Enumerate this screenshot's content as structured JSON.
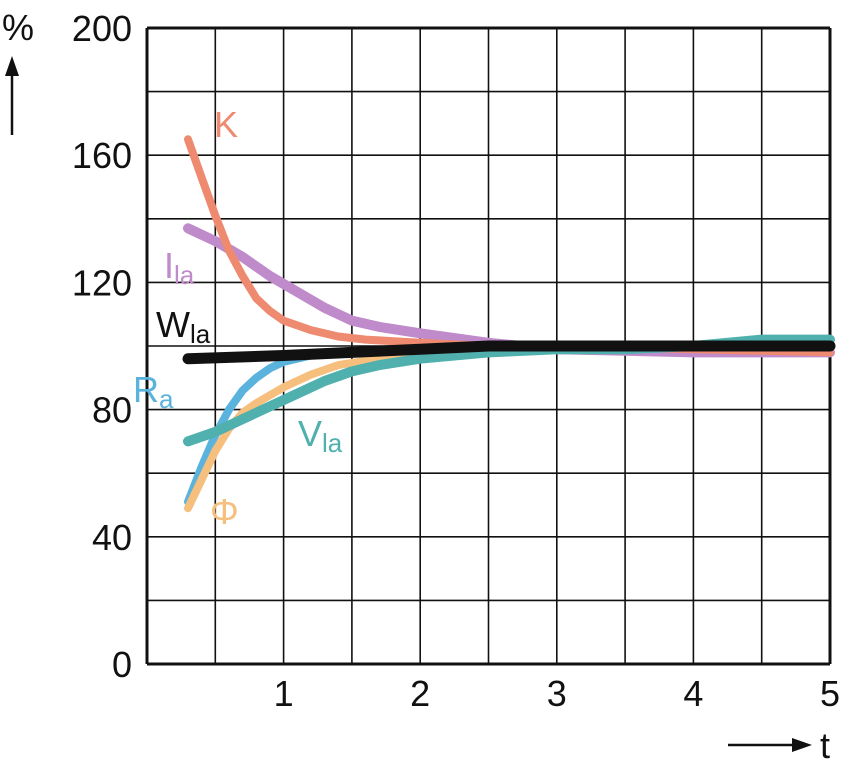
{
  "chart_data": {
    "type": "line",
    "xlabel": "t",
    "ylabel": "%",
    "xlim": [
      0,
      5
    ],
    "ylim": [
      0,
      200
    ],
    "x_ticks": [
      "1",
      "2",
      "3",
      "4",
      "5"
    ],
    "y_ticks": [
      "0",
      "40",
      "80",
      "120",
      "160",
      "200"
    ],
    "grid": true,
    "series": [
      {
        "name": "K",
        "label_main": "K",
        "label_sub": "",
        "color": "#ee8a70",
        "points": [
          [
            0.3,
            165
          ],
          [
            0.4,
            153
          ],
          [
            0.5,
            141
          ],
          [
            0.6,
            130
          ],
          [
            0.7,
            122
          ],
          [
            0.8,
            115
          ],
          [
            0.9,
            111
          ],
          [
            1.0,
            108
          ],
          [
            1.2,
            105
          ],
          [
            1.4,
            103
          ],
          [
            1.6,
            102
          ],
          [
            2.0,
            101
          ],
          [
            2.5,
            100
          ],
          [
            3,
            100
          ],
          [
            4,
            99
          ],
          [
            5,
            98
          ]
        ]
      },
      {
        "name": "Ila",
        "label_main": "I",
        "label_sub": "la",
        "color": "#c08bca",
        "points": [
          [
            0.3,
            137
          ],
          [
            0.5,
            133
          ],
          [
            0.7,
            128
          ],
          [
            0.9,
            122
          ],
          [
            1.1,
            117
          ],
          [
            1.3,
            112
          ],
          [
            1.5,
            108
          ],
          [
            1.7,
            106
          ],
          [
            2.0,
            104
          ],
          [
            2.5,
            101
          ],
          [
            3,
            99
          ],
          [
            4,
            98
          ],
          [
            5,
            98
          ]
        ]
      },
      {
        "name": "Ra",
        "label_main": "R",
        "label_sub": "a",
        "color": "#5ab3dd",
        "points": [
          [
            0.3,
            51
          ],
          [
            0.4,
            62
          ],
          [
            0.5,
            72
          ],
          [
            0.6,
            80
          ],
          [
            0.7,
            86
          ],
          [
            0.8,
            90
          ],
          [
            0.9,
            93
          ],
          [
            1.0,
            95
          ],
          [
            1.2,
            97
          ],
          [
            1.5,
            98
          ],
          [
            2.0,
            99
          ],
          [
            3,
            100
          ],
          [
            4,
            100
          ],
          [
            5,
            100
          ]
        ]
      },
      {
        "name": "Φ",
        "label_main": "Φ",
        "label_sub": "",
        "color": "#f6bf7e",
        "points": [
          [
            0.3,
            49
          ],
          [
            0.4,
            58
          ],
          [
            0.5,
            67
          ],
          [
            0.6,
            74
          ],
          [
            0.7,
            79
          ],
          [
            0.8,
            82
          ],
          [
            1.0,
            87
          ],
          [
            1.2,
            91
          ],
          [
            1.4,
            94
          ],
          [
            1.7,
            96
          ],
          [
            2.0,
            98
          ],
          [
            2.5,
            99
          ],
          [
            3,
            100
          ],
          [
            4,
            100
          ],
          [
            5,
            100
          ]
        ]
      },
      {
        "name": "Vla",
        "label_main": "V",
        "label_sub": "la",
        "color": "#4fb0ad",
        "points": [
          [
            0.3,
            70
          ],
          [
            0.5,
            73
          ],
          [
            0.7,
            77
          ],
          [
            0.9,
            81
          ],
          [
            1.1,
            85
          ],
          [
            1.3,
            89
          ],
          [
            1.5,
            92
          ],
          [
            1.7,
            94
          ],
          [
            2.0,
            96
          ],
          [
            2.5,
            98
          ],
          [
            3,
            99
          ],
          [
            3.5,
            99
          ],
          [
            4,
            100
          ],
          [
            4.5,
            102
          ],
          [
            5,
            102
          ]
        ]
      },
      {
        "name": "Wla",
        "label_main": "W",
        "label_sub": "la",
        "color": "#111111",
        "points": [
          [
            0.3,
            96
          ],
          [
            1.0,
            97
          ],
          [
            1.5,
            98
          ],
          [
            2.0,
            99
          ],
          [
            2.5,
            100
          ],
          [
            3,
            100
          ],
          [
            4,
            100
          ],
          [
            5,
            100
          ]
        ]
      }
    ]
  }
}
